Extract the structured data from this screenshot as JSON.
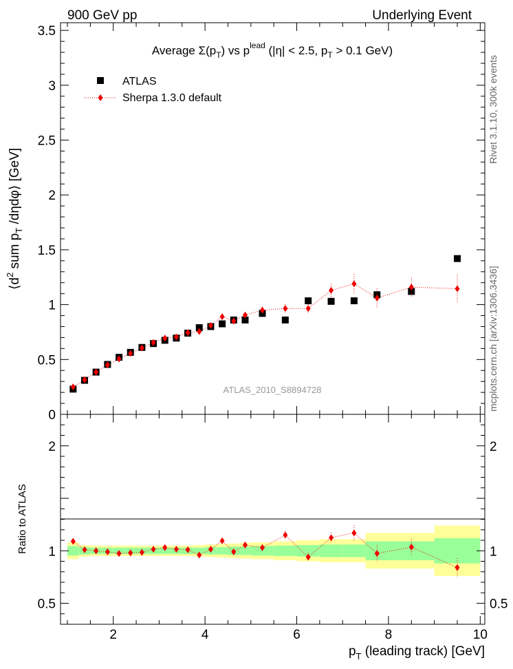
{
  "header": {
    "left": "900 GeV pp",
    "right": "Underlying Event"
  },
  "side_labels": {
    "rivet": "Rivet 3.1.10,  300k events",
    "mcplots": "mcplots.cern.ch [arXiv:1306.3436]"
  },
  "colors": {
    "atlas": "#000000",
    "sherpa": "#ee0000",
    "band_inner": "#99ff99",
    "band_outer": "#ffff99",
    "watermark": "#999999"
  },
  "chart_data": [
    {
      "type": "scatter",
      "panel": "main",
      "title": "Average Σ(pT) vs pT^lead (|η| < 2.5, pT > 0.1 GeV)",
      "title_parts": {
        "prefix": "Average ",
        "sigma": "Σ(p",
        "t_sub": "T",
        "mid": ") vs p",
        "lead_sup": "lead",
        "cut": " (|η| < 2.5, p",
        "end": " > 0.1 GeV)"
      },
      "ylabel_parts": {
        "open": "⟨d",
        "two": "2",
        "mid": " sum p",
        "t_sub": "T",
        "end": " /dηdφ⟩ [GeV]"
      },
      "watermark": "ATLAS_2010_S8894728",
      "xlim": [
        0.85,
        10.1
      ],
      "ylim": [
        0,
        3.57
      ],
      "xticks": [
        "2",
        "4",
        "6",
        "8",
        "10"
      ],
      "yticks": [
        "0",
        "0.5",
        "1",
        "1.5",
        "2",
        "2.5",
        "3",
        "3.5"
      ],
      "legend_position": "top-left",
      "series": [
        {
          "name": "ATLAS",
          "marker": "square",
          "x": [
            1.125,
            1.375,
            1.625,
            1.875,
            2.125,
            2.375,
            2.625,
            2.875,
            3.125,
            3.375,
            3.625,
            3.875,
            4.125,
            4.375,
            4.625,
            4.875,
            5.25,
            5.75,
            6.25,
            6.75,
            7.25,
            7.75,
            8.5,
            9.5
          ],
          "y": [
            0.23,
            0.31,
            0.385,
            0.455,
            0.52,
            0.565,
            0.61,
            0.645,
            0.675,
            0.695,
            0.74,
            0.79,
            0.8,
            0.825,
            0.86,
            0.86,
            0.92,
            0.86,
            1.035,
            1.03,
            1.035,
            1.09,
            1.12,
            1.42
          ],
          "xerr": [
            0.125,
            0.125,
            0.125,
            0.125,
            0.125,
            0.125,
            0.125,
            0.125,
            0.125,
            0.125,
            0.125,
            0.125,
            0.125,
            0.125,
            0.125,
            0.125,
            0.25,
            0.25,
            0.25,
            0.25,
            0.25,
            0.25,
            0.5,
            0.5
          ]
        },
        {
          "name": "Sherpa 1.3.0 default",
          "marker": "diamond",
          "line": "dotted",
          "x": [
            1.125,
            1.375,
            1.625,
            1.875,
            2.125,
            2.375,
            2.625,
            2.875,
            3.125,
            3.375,
            3.625,
            3.875,
            4.125,
            4.375,
            4.625,
            4.875,
            5.25,
            5.75,
            6.25,
            6.75,
            7.25,
            7.75,
            8.5,
            9.5
          ],
          "y": [
            0.25,
            0.315,
            0.385,
            0.45,
            0.505,
            0.555,
            0.605,
            0.655,
            0.695,
            0.705,
            0.745,
            0.755,
            0.81,
            0.89,
            0.85,
            0.905,
            0.95,
            0.965,
            0.965,
            1.13,
            1.19,
            1.06,
            1.16,
            1.145
          ],
          "yerr": [
            0.01,
            0.01,
            0.01,
            0.012,
            0.012,
            0.012,
            0.013,
            0.014,
            0.015,
            0.015,
            0.016,
            0.017,
            0.018,
            0.02,
            0.02,
            0.025,
            0.03,
            0.04,
            0.04,
            0.06,
            0.09,
            0.09,
            0.09,
            0.13
          ]
        }
      ]
    },
    {
      "type": "scatter",
      "panel": "ratio",
      "ylabel": "Ratio to ATLAS",
      "xlabel_parts": {
        "p": "p",
        "t_sub": "T",
        "rest": " (leading track) [GeV]"
      },
      "xlim": [
        0.85,
        10.1
      ],
      "ylim": [
        0.3,
        2.3
      ],
      "xticks": [
        "2",
        "4",
        "6",
        "8",
        "10"
      ],
      "yticks": [
        "0.5",
        "1",
        "2"
      ],
      "reference_line": 1,
      "band": {
        "x_edges": [
          1.0,
          1.25,
          1.5,
          1.75,
          2.0,
          2.25,
          2.5,
          2.75,
          3.0,
          3.25,
          3.5,
          3.75,
          4.0,
          4.25,
          4.5,
          4.75,
          5.0,
          5.5,
          6.0,
          6.5,
          7.0,
          7.5,
          8.0,
          9.0,
          10.0
        ],
        "inner": [
          0.045,
          0.035,
          0.03,
          0.03,
          0.03,
          0.03,
          0.03,
          0.03,
          0.03,
          0.03,
          0.03,
          0.03,
          0.035,
          0.035,
          0.04,
          0.04,
          0.045,
          0.05,
          0.055,
          0.06,
          0.06,
          0.09,
          0.09,
          0.12
        ],
        "outer": [
          0.08,
          0.055,
          0.05,
          0.05,
          0.05,
          0.05,
          0.05,
          0.05,
          0.05,
          0.05,
          0.05,
          0.055,
          0.06,
          0.065,
          0.07,
          0.075,
          0.08,
          0.09,
          0.1,
          0.11,
          0.11,
          0.17,
          0.17,
          0.24
        ]
      },
      "series": [
        {
          "name": "Sherpa / ATLAS",
          "marker": "diamond",
          "line": "dotted",
          "x": [
            1.125,
            1.375,
            1.625,
            1.875,
            2.125,
            2.375,
            2.625,
            2.875,
            3.125,
            3.375,
            3.625,
            3.875,
            4.125,
            4.375,
            4.625,
            4.875,
            5.25,
            5.75,
            6.25,
            6.75,
            7.25,
            7.75,
            8.5,
            9.5
          ],
          "y": [
            1.09,
            1.01,
            1.0,
            0.99,
            0.975,
            0.98,
            0.985,
            1.015,
            1.03,
            1.015,
            1.01,
            0.96,
            1.015,
            1.095,
            0.99,
            1.055,
            1.03,
            1.15,
            0.94,
            1.125,
            1.17,
            0.975,
            1.035,
            0.84
          ],
          "yerr": [
            0.015,
            0.015,
            0.015,
            0.015,
            0.015,
            0.015,
            0.015,
            0.015,
            0.02,
            0.02,
            0.02,
            0.02,
            0.02,
            0.025,
            0.025,
            0.03,
            0.03,
            0.04,
            0.04,
            0.05,
            0.075,
            0.08,
            0.08,
            0.09
          ]
        }
      ]
    }
  ]
}
